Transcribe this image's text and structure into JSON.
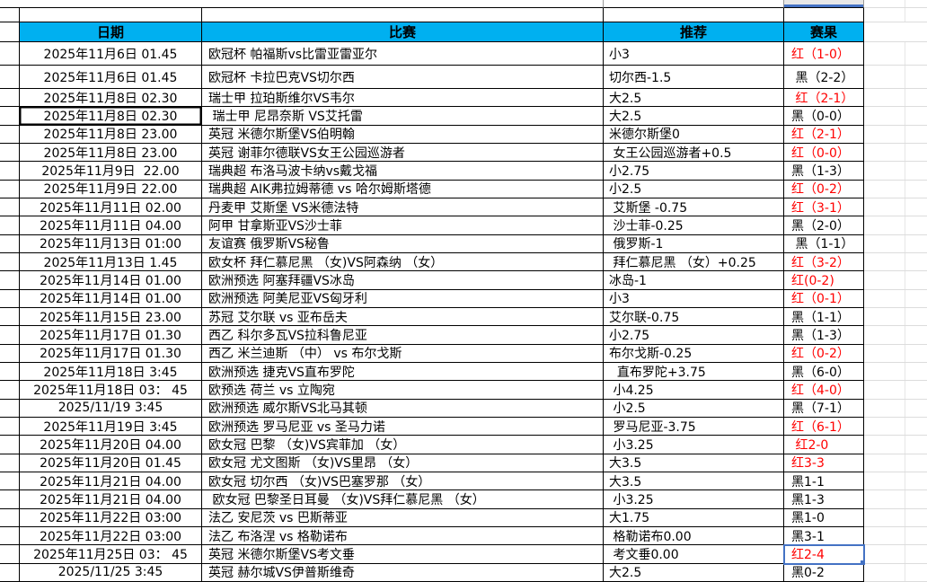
{
  "colors": {
    "header_bg": "#00B0F0",
    "result_red": "#FF0000",
    "selection_blue": "#4472C4"
  },
  "table": {
    "headers": {
      "date": "日期",
      "match": "比赛",
      "tip": "推荐",
      "result": "赛果"
    },
    "rows": [
      {
        "date": "2025年11月6日 01.45",
        "match": "欧冠杯 帕福斯vs比雷亚雷亚尔",
        "tip": "小3",
        "result": "红（1-0）",
        "result_color": "red",
        "tall": true
      },
      {
        "date": "2025年11月6日 01.45",
        "match": "欧冠杯 卡拉巴克VS切尔西",
        "tip": "切尔西-1.5",
        "result": " 黑（2-2）",
        "result_color": "black",
        "tall": true
      },
      {
        "date": "2025年11月8日 02.30",
        "match": "瑞士甲 拉珀斯维尔VS韦尔",
        "tip": "大2.5",
        "result": " 红（2-1）",
        "result_color": "red"
      },
      {
        "date": "2025年11月8日 02.30",
        "match": " 瑞士甲 尼昂奈斯 VS艾托雷",
        "tip": "大2.5",
        "result": "黑（0-0）",
        "result_color": "black",
        "date_boxed": true
      },
      {
        "date": "2025年11月8日 23.00",
        "match": "英冠 米德尔斯堡VS伯明翰",
        "tip": "米德尔斯堡0",
        "result": "红（2-1）",
        "result_color": "red"
      },
      {
        "date": "2025年11月8日 23.00",
        "match": "英冠 谢菲尔德联VS女王公园巡游者",
        "tip": " 女王公园巡游者+0.5",
        "result": "红（0-0）",
        "result_color": "red"
      },
      {
        "date": "2025年11月9日  22.00",
        "match": "瑞典超 布洛马波卡纳vs戴戈福",
        "tip": "小2.75",
        "result": "黑（1-3）",
        "result_color": "black"
      },
      {
        "date": "2025年11月9日 22.00",
        "match": "瑞典超 AIK弗拉姆蒂德 vs 哈尔姆斯塔德",
        "tip": "小2.5",
        "result": "红（0-2）",
        "result_color": "red"
      },
      {
        "date": "2025年11月11日 02.00",
        "match": "丹麦甲 艾斯堡 VS米德法特",
        "tip": " 艾斯堡 -0.75",
        "result": "红（3-1）",
        "result_color": "red"
      },
      {
        "date": "2025年11月11日 04.00",
        "match": "阿甲 甘拿斯亚VS沙士菲",
        "tip": " 沙士菲-0.25",
        "result": "黑（2-0）",
        "result_color": "black"
      },
      {
        "date": "2025年11月13日 01:00",
        "match": "友谊赛 俄罗斯VS秘鲁",
        "tip": " 俄罗斯-1",
        "result": " 黑（1-1）",
        "result_color": "black"
      },
      {
        "date": "2025年11月13日 1.45",
        "match": "欧女杯 拜仁慕尼黑 （女)VS阿森纳 （女）",
        "tip": " 拜仁慕尼黑 （女）+0.25",
        "result": "红（3-2）",
        "result_color": "red"
      },
      {
        "date": "2025年11月14日 01.00",
        "match": "欧洲预选 阿塞拜疆VS冰岛",
        "tip": "冰岛-1",
        "result": "红(0-2)",
        "result_color": "red"
      },
      {
        "date": "2025年11月14日 01.00",
        "match": "欧洲预选 阿美尼亚VS匈牙利",
        "tip": "小3",
        "result": "红（0-1）",
        "result_color": "red"
      },
      {
        "date": "2025年11月15日 23.00",
        "match": "苏冠 艾尔联 vs 亚布岳夫",
        "tip": "艾尔联-0.75",
        "result": "黑（1-1）",
        "result_color": "black"
      },
      {
        "date": "2025年11月17日 01.30",
        "match": "西乙 科尔多瓦VS拉科鲁尼亚",
        "tip": "小2.75",
        "result": "黑（1-3）",
        "result_color": "black"
      },
      {
        "date": "2025年11月17日 01.30",
        "match": "西乙 米兰迪斯 （中） vs 布尔戈斯",
        "tip": "布尔戈斯-0.25",
        "result": "红（0-2）",
        "result_color": "red"
      },
      {
        "date": "2025年11月18日 3:45",
        "match": "欧洲预选 捷克VS直布罗陀",
        "tip": "  直布罗陀+3.75",
        "result": "黑（6-0）",
        "result_color": "black"
      },
      {
        "date": "2025年11月18日 03： 45",
        "match": "欧预选 荷兰 vs 立陶宛",
        "tip": " 小4.25",
        "result": "红（4-0）",
        "result_color": "red"
      },
      {
        "date": "2025/11/19 3:45",
        "match": "欧洲预选 威尔斯VS北马其顿",
        "tip": " 小2.5",
        "result": "黑（7-1）",
        "result_color": "black"
      },
      {
        "date": "2025年11月19日 3:45",
        "match": "欧洲预选 罗马尼亚 vs 圣马力诺",
        "tip": " 罗马尼亚-3.75",
        "result": "红（6-1）",
        "result_color": "red"
      },
      {
        "date": "2025年11月20日 04.00",
        "match": "欧女冠 巴黎 （女)VS宾菲加 （女）",
        "tip": " 小3.25",
        "result": " 红2-0",
        "result_color": "red"
      },
      {
        "date": "2025年11月20日 01.45",
        "match": "欧女冠 尤文图斯 （女)VS里昂 （女）",
        "tip": "大3.5",
        "result": "红3-3",
        "result_color": "red"
      },
      {
        "date": "2025年11月21日 04.00",
        "match": "欧女冠 切尔西 （女)VS巴塞罗那 （女）",
        "tip": "大3.5",
        "result": "黑1-1",
        "result_color": "black"
      },
      {
        "date": "2025年11月21日 04.00",
        "match": " 欧女冠 巴黎圣日耳曼 （女)VS拜仁慕尼黑 （女）",
        "tip": " 小3.25",
        "result": "黑1-3",
        "result_color": "black"
      },
      {
        "date": "2025年11月22日 03:00",
        "match": "法乙 安尼茨 vs 巴斯蒂亚",
        "tip": "大1.75",
        "result": "黑1-0",
        "result_color": "black"
      },
      {
        "date": "2025年11月22日 03:00",
        "match": "法乙 布洛涅 vs 格勒诺布",
        "tip": " 格勒诺布0.00",
        "result": "黑3-1",
        "result_color": "black"
      },
      {
        "date": "2025年11月25日 03： 45",
        "match": "英冠 米德尔斯堡VS考文垂",
        "tip": " 考文垂0.00",
        "result": "红2-4",
        "result_color": "red",
        "result_selected": true
      },
      {
        "date": "2025/11/25 3:45",
        "match": "英冠 赫尔城VS伊普斯维奇",
        "tip": "大2.5",
        "result": "黑0-2",
        "result_color": "black"
      }
    ]
  }
}
